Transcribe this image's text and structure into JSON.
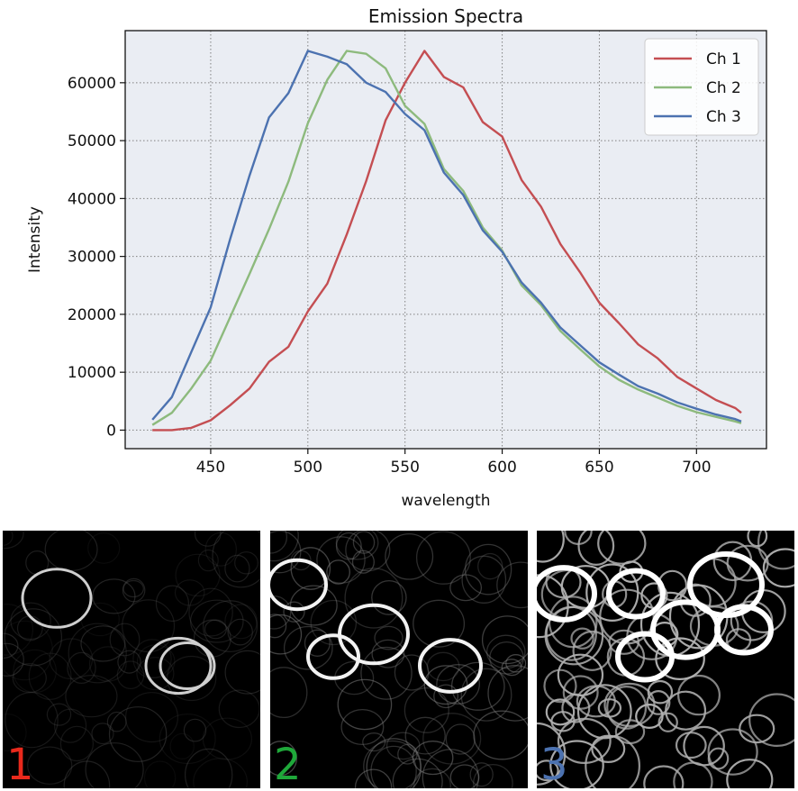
{
  "chart_data": {
    "type": "line",
    "title": "Emission Spectra",
    "xlabel": "wavelength",
    "ylabel": "Intensity",
    "xlim": [
      406,
      736
    ],
    "ylim": [
      -3200,
      69000
    ],
    "xticks": [
      450,
      500,
      550,
      600,
      650,
      700
    ],
    "yticks": [
      0,
      10000,
      20000,
      30000,
      40000,
      50000,
      60000
    ],
    "grid": true,
    "legend_position": "top-right",
    "x": [
      420,
      430,
      440,
      450,
      460,
      470,
      480,
      490,
      500,
      510,
      520,
      530,
      540,
      550,
      560,
      570,
      580,
      590,
      600,
      610,
      620,
      630,
      640,
      650,
      660,
      670,
      680,
      690,
      700,
      710,
      720,
      723
    ],
    "series": [
      {
        "name": "Ch 1",
        "color": "#c44e52",
        "values": [
          0,
          0,
          400,
          1700,
          4300,
          7200,
          11800,
          14400,
          20500,
          25300,
          33800,
          43000,
          53500,
          60000,
          65500,
          61000,
          59200,
          53200,
          50700,
          43200,
          38600,
          32100,
          27300,
          22000,
          18500,
          14800,
          12400,
          9200,
          7200,
          5200,
          3800,
          3000
        ]
      },
      {
        "name": "Ch 2",
        "color": "#8dba7d",
        "values": [
          900,
          3000,
          7200,
          12000,
          19500,
          27000,
          34700,
          42900,
          53000,
          60500,
          65500,
          65000,
          62500,
          56000,
          52900,
          45100,
          41300,
          35000,
          31000,
          25000,
          21600,
          17100,
          14000,
          11000,
          8700,
          7000,
          5600,
          4200,
          3100,
          2300,
          1500,
          1200
        ]
      },
      {
        "name": "Ch 3",
        "color": "#4c72b0",
        "values": [
          1800,
          5700,
          13500,
          21200,
          33000,
          44000,
          54000,
          58200,
          65500,
          64500,
          63200,
          60000,
          58400,
          54600,
          51800,
          44500,
          40600,
          34500,
          30800,
          25500,
          22000,
          17700,
          14700,
          11700,
          9600,
          7600,
          6300,
          4800,
          3700,
          2700,
          1900,
          1500
        ]
      }
    ]
  },
  "panels": [
    {
      "label": "1",
      "label_color": "#e8291c"
    },
    {
      "label": "2",
      "label_color": "#1fa83a"
    },
    {
      "label": "3",
      "label_color": "#4c72b0"
    }
  ]
}
